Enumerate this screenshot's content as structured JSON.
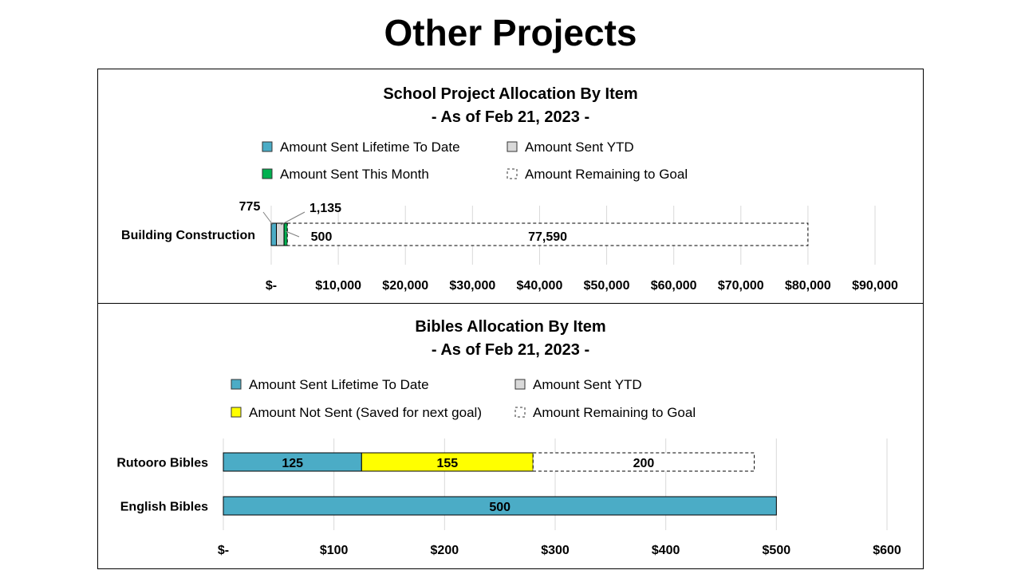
{
  "page": {
    "title": "Other Projects"
  },
  "chart_data": [
    {
      "type": "bar",
      "orientation": "horizontal",
      "stacked": true,
      "title": "School Project Allocation By Item",
      "subtitle": "- As of Feb 21, 2023 -",
      "categories": [
        "Building Construction"
      ],
      "series": [
        {
          "name": "Amount Sent Lifetime To Date",
          "values": [
            775
          ],
          "color": "#4bacc6"
        },
        {
          "name": "Amount Sent YTD",
          "values": [
            1135
          ],
          "color": "#d9d9d9"
        },
        {
          "name": "Amount Sent This Month",
          "values": [
            500
          ],
          "color": "#00b050"
        },
        {
          "name": "Amount Remaining to Goal",
          "values": [
            77590
          ],
          "color": "#ffffff",
          "dashed": true
        }
      ],
      "data_labels": [
        "775",
        "1,135",
        "500",
        "77,590"
      ],
      "xlim": [
        0,
        90000
      ],
      "ticks": [
        0,
        10000,
        20000,
        30000,
        40000,
        50000,
        60000,
        70000,
        80000,
        90000
      ],
      "tick_labels": [
        "$-",
        "$10,000",
        "$20,000",
        "$30,000",
        "$40,000",
        "$50,000",
        "$60,000",
        "$70,000",
        "$80,000",
        "$90,000"
      ],
      "grid": true,
      "legend_position": "top"
    },
    {
      "type": "bar",
      "orientation": "horizontal",
      "stacked": true,
      "title": "Bibles Allocation By Item",
      "subtitle": "- As of Feb 21, 2023 -",
      "categories": [
        "Rutooro Bibles",
        "English Bibles"
      ],
      "series": [
        {
          "name": "Amount Sent Lifetime To Date",
          "values": [
            125,
            500
          ],
          "color": "#4bacc6"
        },
        {
          "name": "Amount Sent YTD",
          "values": [
            0,
            0
          ],
          "color": "#d9d9d9"
        },
        {
          "name": "Amount Not Sent (Saved for next goal)",
          "values": [
            155,
            0
          ],
          "color": "#ffff00"
        },
        {
          "name": "Amount Remaining to Goal",
          "values": [
            200,
            0
          ],
          "color": "#ffffff",
          "dashed": true
        }
      ],
      "data_labels": [
        [
          "125",
          "155",
          "200"
        ],
        [
          "500"
        ]
      ],
      "xlim": [
        0,
        600
      ],
      "ticks": [
        0,
        100,
        200,
        300,
        400,
        500,
        600
      ],
      "tick_labels": [
        "$-",
        "$100",
        "$200",
        "$300",
        "$400",
        "$500",
        "$600"
      ],
      "grid": true,
      "legend_position": "top"
    }
  ]
}
